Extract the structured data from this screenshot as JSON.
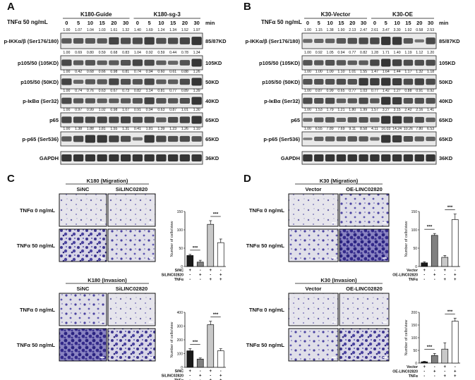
{
  "panels": {
    "A": {
      "letter": "A",
      "treatment": "TNFα 50 ng/mL",
      "groups": [
        "K180-Guide",
        "K180-sg-3"
      ],
      "times": [
        "0",
        "5",
        "10",
        "15",
        "20",
        "30",
        "0",
        "5",
        "10",
        "15",
        "20",
        "30"
      ],
      "unit": "min",
      "bands": [
        {
          "label": "p-IKKα/β (Ser176/180)",
          "size": "85/87KD",
          "values": [
            "1.00",
            "1.07",
            "1.04",
            "1.03",
            "1.61",
            "1.32",
            "1.40",
            "1.69",
            "1.24",
            "1.34",
            "1.52",
            "1.97"
          ]
        },
        {
          "label": "p105/50 (105KD)",
          "size": "105KD",
          "values": [
            "1.00",
            "0.69",
            "0.80",
            "0.59",
            "0.68",
            "0.83",
            "1.04",
            "0.92",
            "0.59",
            "0.44",
            "0.78",
            "1.34"
          ]
        },
        {
          "label": "p105/50 (50KD)",
          "size": "50KD",
          "values": [
            "1.00",
            "0.42",
            "0.68",
            "0.66",
            "0.98",
            "0.81",
            "0.74",
            "0.94",
            "0.60",
            "0.61",
            "0.88",
            "1.26"
          ]
        },
        {
          "label": "p-IκBα (Ser32)",
          "size": "40KD",
          "values": [
            "1.00",
            "0.74",
            "0.76",
            "0.63",
            "0.67",
            "0.73",
            "0.82",
            "1.14",
            "0.81",
            "0.77",
            "0.89",
            "1.39"
          ]
        },
        {
          "label": "p65",
          "size": "65KD",
          "values": [
            "1.00",
            "0.97",
            "0.99",
            "1.02",
            "0.98",
            "1.07",
            "0.91",
            "0.94",
            "0.63",
            "0.87",
            "1.01",
            "1.30"
          ]
        },
        {
          "label": "p-p65 (Ser536)",
          "size": "65KD",
          "values": [
            "1.00",
            "1.38",
            "1.88",
            "1.81",
            "1.55",
            "1.31",
            "0.41",
            "1.81",
            "1.39",
            "1.23",
            "1.26",
            "1.10"
          ]
        },
        {
          "label": "GAPDH",
          "size": "36KD",
          "values": []
        }
      ]
    },
    "B": {
      "letter": "B",
      "treatment": "TNFα 50 ng/mL",
      "groups": [
        "K30-Vector",
        "K30-OE"
      ],
      "times": [
        "0",
        "5",
        "10",
        "15",
        "20",
        "30",
        "0",
        "5",
        "10",
        "15",
        "20",
        "30"
      ],
      "unit": "min",
      "bands": [
        {
          "label": "p-IKKα/β (Ser176/180)",
          "size": "85/87KD",
          "values": [
            "1.00",
            "1.15",
            "1.38",
            "1.90",
            "2.13",
            "2.47",
            "2.61",
            "3.47",
            "3.30",
            "1.92",
            "0.58",
            "2.53"
          ]
        },
        {
          "label": "p105/50 (105KD)",
          "size": "105KD",
          "values": [
            "1.00",
            "0.92",
            "1.05",
            "0.94",
            "0.77",
            "0.82",
            "1.28",
            "1.71",
            "1.40",
            "1.19",
            "1.12",
            "1.20"
          ]
        },
        {
          "label": "p105/50 (50KD)",
          "size": "50KD",
          "values": [
            "1.00",
            "1.00",
            "1.00",
            "1.10",
            "1.01",
            "1.55",
            "1.47",
            "1.64",
            "1.44",
            "1.17",
            "1.32",
            "1.18"
          ]
        },
        {
          "label": "p-IκBα (Ser32)",
          "size": "40KD",
          "values": [
            "1.00",
            "0.87",
            "0.99",
            "0.65",
            "0.77",
            "1.03",
            "0.77",
            "1.42",
            "1.27",
            "0.88",
            "0.91",
            "0.92"
          ]
        },
        {
          "label": "p65",
          "size": "65KD",
          "values": [
            "1.00",
            "1.53",
            "1.79",
            "1.21",
            "1.80",
            "1.99",
            "1.57",
            "3.27",
            "3.15",
            "2.42",
            "2.16",
            "1.41"
          ]
        },
        {
          "label": "p-p65 (Ser536)",
          "size": "65KD",
          "values": [
            "1.00",
            "6.55",
            "7.89",
            "7.69",
            "9.11",
            "8.58",
            "4.11",
            "16.03",
            "14.24",
            "10.26",
            "7.80",
            "6.53"
          ]
        },
        {
          "label": "GAPDH",
          "size": "36KD",
          "values": []
        }
      ]
    },
    "C": {
      "letter": "C",
      "rows": [
        "TNFα 0 ng/mL",
        "TNFα 50 ng/mL"
      ],
      "columns": [
        "SiNC",
        "SiLINC02820"
      ],
      "migration_title": "K180 (Migration)",
      "invasion_title": "K180 (Invasion)",
      "legend_rows": [
        "SiNC",
        "SiLINC02820",
        "TNFα"
      ],
      "legend_signs": [
        [
          "+",
          "-",
          "+",
          "-"
        ],
        [
          "-",
          "+",
          "-",
          "+"
        ],
        [
          "-",
          "-",
          "+",
          "+"
        ]
      ]
    },
    "D": {
      "letter": "D",
      "rows": [
        "TNFα 0 ng/mL",
        "TNFα 50 ng/mL"
      ],
      "columns": [
        "Vector",
        "OE-LINC02820"
      ],
      "migration_title": "K30 (Migration)",
      "invasion_title": "K30 (Invasion)",
      "legend_rows": [
        "Vector",
        "OE-LINC02820",
        "TNFα"
      ],
      "legend_signs": [
        [
          "+",
          "-",
          "+",
          "-"
        ],
        [
          "-",
          "+",
          "-",
          "+"
        ],
        [
          "-",
          "-",
          "+",
          "+"
        ]
      ]
    }
  },
  "chart_data": [
    {
      "id": "C-migration",
      "type": "bar",
      "ylabel": "Number of cells/view",
      "ylim": [
        0,
        150
      ],
      "yticks": [
        0,
        50,
        100,
        150
      ],
      "values": [
        30,
        12,
        115,
        65
      ],
      "errors": [
        3,
        5,
        10,
        10
      ],
      "colors": [
        "#1a1a1a",
        "#808080",
        "#c8c8c8",
        "#ffffff"
      ],
      "significance": [
        "***",
        "***"
      ]
    },
    {
      "id": "C-invasion",
      "type": "bar",
      "ylabel": "Number of cells/view",
      "ylim": [
        0,
        400
      ],
      "yticks": [
        0,
        100,
        200,
        300,
        400
      ],
      "values": [
        120,
        60,
        310,
        120
      ],
      "errors": [
        15,
        8,
        25,
        15
      ],
      "colors": [
        "#1a1a1a",
        "#808080",
        "#c8c8c8",
        "#ffffff"
      ],
      "significance": [
        "***",
        "***"
      ]
    },
    {
      "id": "D-migration",
      "type": "bar",
      "ylabel": "Number of cells/view",
      "ylim": [
        0,
        150
      ],
      "yticks": [
        0,
        50,
        100,
        150
      ],
      "values": [
        10,
        85,
        25,
        128
      ],
      "errors": [
        3,
        5,
        5,
        15
      ],
      "colors": [
        "#1a1a1a",
        "#808080",
        "#c8c8c8",
        "#ffffff"
      ],
      "significance": [
        "***",
        "***"
      ]
    },
    {
      "id": "D-invasion",
      "type": "bar",
      "ylabel": "Number of cells/view",
      "ylim": [
        0,
        200
      ],
      "yticks": [
        0,
        50,
        100,
        150,
        200
      ],
      "values": [
        5,
        30,
        55,
        165
      ],
      "errors": [
        2,
        8,
        25,
        12
      ],
      "colors": [
        "#1a1a1a",
        "#808080",
        "#c8c8c8",
        "#ffffff"
      ],
      "significance": [
        "***",
        "***"
      ]
    }
  ]
}
